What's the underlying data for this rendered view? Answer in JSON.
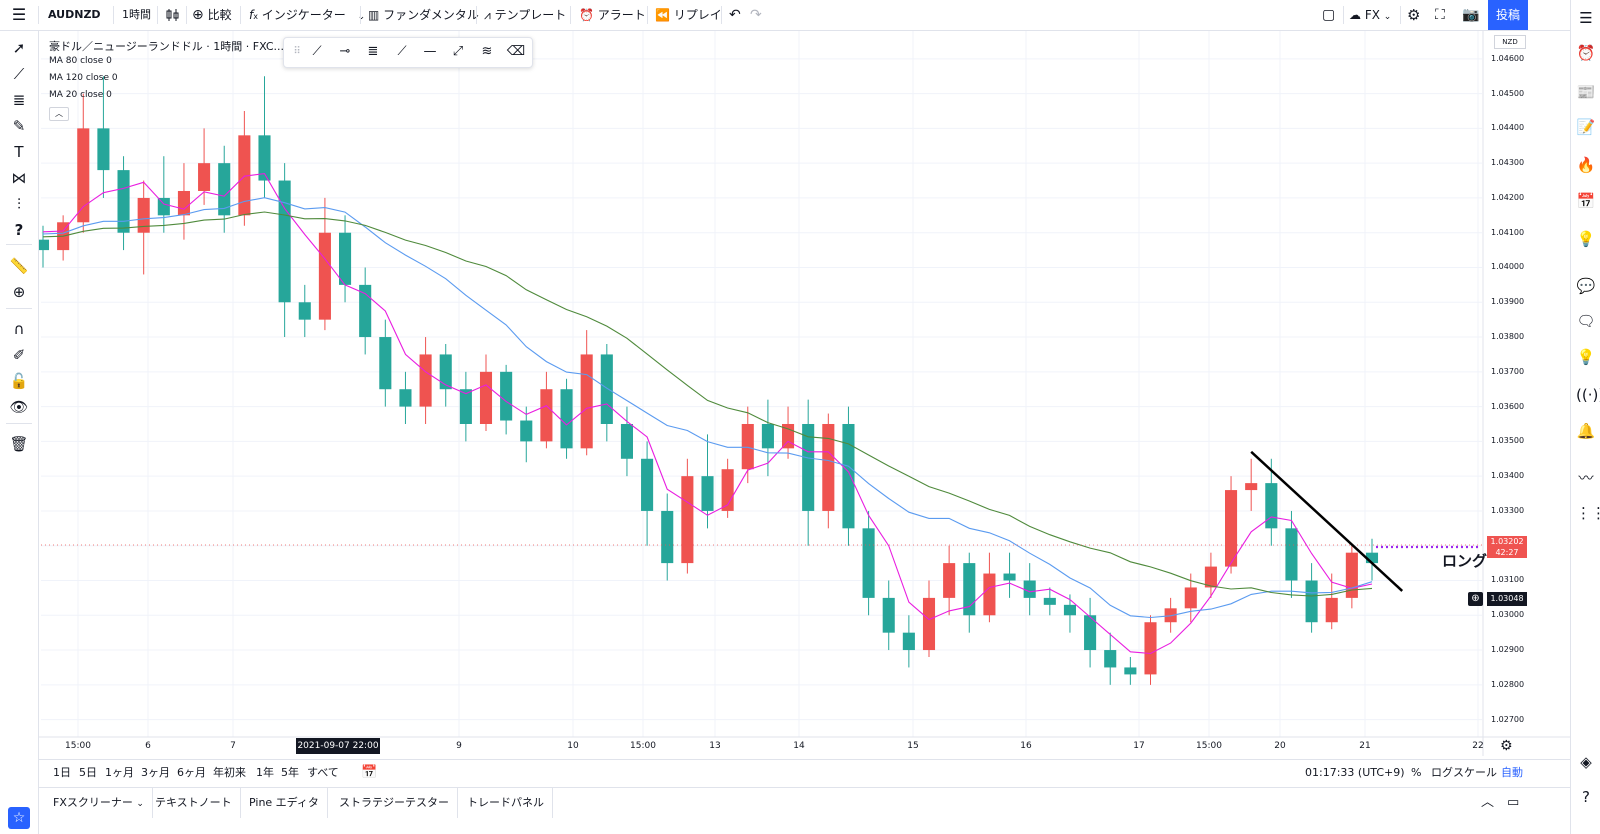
{
  "toolbar": {
    "menu_icon": "hamburger-icon",
    "symbol": "AUDNZD",
    "interval": "1時間",
    "compare_label": "比較",
    "indicator_label": "インジケーター",
    "fundamental_label": "ファンダメンタル",
    "template_label": "テンプレート",
    "alert_label": "アラート",
    "replay_label": "リプレイ",
    "fx_label": "FX",
    "publish_label": "投稿"
  },
  "chart": {
    "title": "豪ドル／ニュージーランドドル · 1時間 · FXC...",
    "legend": [
      "MA 80 close 0",
      "MA 120 close 0",
      "MA 20 close 0"
    ],
    "currency_badge": "NZD",
    "current_price": "1.03202",
    "countdown": "42:27",
    "crosshair_price": "1.03048",
    "annotation": "ロング",
    "crosshair_time": "2021-09-07 22:00",
    "price_ticks": [
      "1.04600",
      "1.04500",
      "1.04400",
      "1.04300",
      "1.04200",
      "1.04100",
      "1.04000",
      "1.03900",
      "1.03800",
      "1.03700",
      "1.03600",
      "1.03500",
      "1.03400",
      "1.03300",
      "1.03200",
      "1.03100",
      "1.03000",
      "1.02900",
      "1.02800",
      "1.02700"
    ],
    "time_ticks": [
      "15:00",
      "6",
      "7",
      "9",
      "10",
      "15:00",
      "13",
      "14",
      "15",
      "16",
      "17",
      "15:00",
      "20",
      "21",
      "22"
    ]
  },
  "bottom": {
    "ranges": [
      "1日",
      "5日",
      "1ヶ月",
      "3ヶ月",
      "6ヶ月",
      "年初来",
      "1年",
      "5年",
      "すべて"
    ],
    "clock": "01:17:33 (UTC+9)",
    "percent": "%",
    "log_label": "ログスケール",
    "auto_label": "自動"
  },
  "tabs": [
    "FXスクリーナー",
    "テキストノート",
    "Pine エディタ",
    "ストラテジーテスター",
    "トレードパネル"
  ],
  "colors": {
    "up": "#ef5350",
    "down": "#26a69a",
    "ma20": "#e91ee0",
    "ma80": "#5b9bf0",
    "ma120": "#4f8a3c",
    "accent": "#2962ff",
    "long_line": "#9c27f0"
  },
  "chart_data": {
    "type": "candlestick",
    "y_range": [
      1.0265,
      1.0468
    ],
    "current_price": 1.03202,
    "crosshair_price": 1.03048,
    "ohlc_approx": [
      [
        1.0408,
        1.0412,
        1.04,
        1.0405
      ],
      [
        1.0405,
        1.0415,
        1.0402,
        1.0413
      ],
      [
        1.0413,
        1.045,
        1.041,
        1.044
      ],
      [
        1.044,
        1.0455,
        1.042,
        1.0428
      ],
      [
        1.0428,
        1.0432,
        1.0405,
        1.041
      ],
      [
        1.041,
        1.0425,
        1.0398,
        1.042
      ],
      [
        1.042,
        1.0432,
        1.041,
        1.0415
      ],
      [
        1.0415,
        1.043,
        1.0408,
        1.0422
      ],
      [
        1.0422,
        1.044,
        1.0418,
        1.043
      ],
      [
        1.043,
        1.0435,
        1.041,
        1.0415
      ],
      [
        1.0415,
        1.0445,
        1.0412,
        1.0438
      ],
      [
        1.0438,
        1.0455,
        1.042,
        1.0425
      ],
      [
        1.0425,
        1.043,
        1.038,
        1.039
      ],
      [
        1.039,
        1.0395,
        1.038,
        1.0385
      ],
      [
        1.0385,
        1.042,
        1.0382,
        1.041
      ],
      [
        1.041,
        1.0415,
        1.039,
        1.0395
      ],
      [
        1.0395,
        1.04,
        1.0375,
        1.038
      ],
      [
        1.038,
        1.0385,
        1.036,
        1.0365
      ],
      [
        1.0365,
        1.037,
        1.0355,
        1.036
      ],
      [
        1.036,
        1.038,
        1.0355,
        1.0375
      ],
      [
        1.0375,
        1.0378,
        1.036,
        1.0365
      ],
      [
        1.0365,
        1.037,
        1.035,
        1.0355
      ],
      [
        1.0355,
        1.0375,
        1.0353,
        1.037
      ],
      [
        1.037,
        1.0372,
        1.0352,
        1.0356
      ],
      [
        1.0356,
        1.036,
        1.0344,
        1.035
      ],
      [
        1.035,
        1.037,
        1.0348,
        1.0365
      ],
      [
        1.0365,
        1.0368,
        1.0345,
        1.0348
      ],
      [
        1.0348,
        1.0382,
        1.0346,
        1.0375
      ],
      [
        1.0375,
        1.0378,
        1.035,
        1.0355
      ],
      [
        1.0355,
        1.036,
        1.034,
        1.0345
      ],
      [
        1.0345,
        1.035,
        1.032,
        1.033
      ],
      [
        1.033,
        1.0335,
        1.031,
        1.0315
      ],
      [
        1.0315,
        1.0345,
        1.0312,
        1.034
      ],
      [
        1.034,
        1.0352,
        1.0325,
        1.033
      ],
      [
        1.033,
        1.0345,
        1.0328,
        1.0342
      ],
      [
        1.0342,
        1.036,
        1.0338,
        1.0355
      ],
      [
        1.0355,
        1.0362,
        1.034,
        1.0348
      ],
      [
        1.0348,
        1.036,
        1.0345,
        1.0355
      ],
      [
        1.0355,
        1.0362,
        1.032,
        1.033
      ],
      [
        1.033,
        1.0358,
        1.0325,
        1.0355
      ],
      [
        1.0355,
        1.036,
        1.032,
        1.0325
      ],
      [
        1.0325,
        1.033,
        1.03,
        1.0305
      ],
      [
        1.0305,
        1.031,
        1.029,
        1.0295
      ],
      [
        1.0295,
        1.03,
        1.0285,
        1.029
      ],
      [
        1.029,
        1.031,
        1.0288,
        1.0305
      ],
      [
        1.0305,
        1.032,
        1.03,
        1.0315
      ],
      [
        1.0315,
        1.0318,
        1.0295,
        1.03
      ],
      [
        1.03,
        1.0318,
        1.0298,
        1.0312
      ],
      [
        1.0312,
        1.0318,
        1.0305,
        1.031
      ],
      [
        1.031,
        1.0315,
        1.03,
        1.0305
      ],
      [
        1.0305,
        1.0308,
        1.03,
        1.0303
      ],
      [
        1.0303,
        1.0306,
        1.0295,
        1.03
      ],
      [
        1.03,
        1.0305,
        1.0285,
        1.029
      ],
      [
        1.029,
        1.0295,
        1.028,
        1.0285
      ],
      [
        1.0285,
        1.0288,
        1.028,
        1.0283
      ],
      [
        1.0283,
        1.03,
        1.028,
        1.0298
      ],
      [
        1.0298,
        1.0305,
        1.0295,
        1.0302
      ],
      [
        1.0302,
        1.0312,
        1.0298,
        1.0308
      ],
      [
        1.0308,
        1.0318,
        1.0305,
        1.0314
      ],
      [
        1.0314,
        1.034,
        1.0312,
        1.0336
      ],
      [
        1.0336,
        1.0345,
        1.033,
        1.0338
      ],
      [
        1.0338,
        1.0345,
        1.032,
        1.0325
      ],
      [
        1.0325,
        1.033,
        1.0305,
        1.031
      ],
      [
        1.031,
        1.0315,
        1.0295,
        1.0298
      ],
      [
        1.0298,
        1.0312,
        1.0296,
        1.0305
      ],
      [
        1.0305,
        1.032,
        1.0302,
        1.0318
      ],
      [
        1.0318,
        1.0322,
        1.031,
        1.0315
      ]
    ],
    "trendline": {
      "from": {
        "index": 60,
        "price": 1.0347
      },
      "to": {
        "index": 67.5,
        "price": 1.0307
      }
    },
    "long_level": 1.03202
  }
}
